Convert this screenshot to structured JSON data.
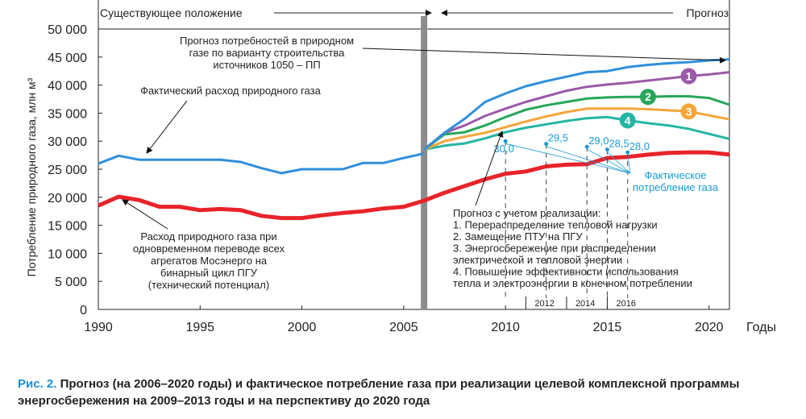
{
  "colors": {
    "historical_gas": "#2f8fdc",
    "potential": "#e8232a",
    "scenario_1": "#9b59a8",
    "scenario_2": "#27a65a",
    "scenario_3": "#f5a53a",
    "scenario_4": "#25b5a3",
    "upper_forecast": "#2f8fdc",
    "actual_points": "#1a9ad6",
    "divider": "#8c8c8c",
    "caption_prefix": "#1a8fd6"
  },
  "header": {
    "left_label": "Существующее положение",
    "right_label": "Прогноз"
  },
  "caption": {
    "prefix": "Рис. 2.",
    "text": "Прогноз (на 2006–2020 годы) и фактическое потребление газа при реализации целевой комплексной программы энергосбережения на 2009–2013 годы и на перспективу до 2020 года"
  },
  "chart_data": {
    "type": "line",
    "xlabel": "Годы",
    "ylabel": "Потребление природного газа, млн м³",
    "xlim": [
      1990,
      2021
    ],
    "ylim": [
      0,
      50000
    ],
    "x_ticks": [
      1990,
      1995,
      2000,
      2005,
      2010,
      2015,
      2020
    ],
    "y_ticks": [
      0,
      5000,
      10000,
      15000,
      20000,
      25000,
      30000,
      35000,
      40000,
      45000,
      50000
    ],
    "y_tick_labels": [
      "0",
      "5 000",
      "10 000",
      "15 000",
      "20 000",
      "25 000",
      "30 000",
      "35 000",
      "40 000",
      "45 000",
      "50 000"
    ],
    "divider_year": 2006,
    "extra_x_labels": [
      "2012",
      "2014",
      "2016"
    ],
    "grid": false,
    "series": [
      {
        "name": "Фактический расход природного газа",
        "key": "historical_gas",
        "x": [
          1990,
          1991,
          1992,
          1993,
          1994,
          1995,
          1996,
          1997,
          1998,
          1999,
          2000,
          2001,
          2002,
          2003,
          2004,
          2005,
          2006
        ],
        "y": [
          26000,
          27400,
          26700,
          26700,
          26700,
          26700,
          26700,
          26300,
          25200,
          24300,
          25000,
          25000,
          25000,
          26100,
          26100,
          27000,
          27800
        ]
      },
      {
        "name": "Расход природного газа при одновременном переводе всех агрегатов Мосэнерго на бинарный цикл ПГУ (технический потенциал)",
        "key": "potential",
        "x": [
          1990,
          1991,
          1992,
          1993,
          1994,
          1995,
          1996,
          1997,
          1998,
          1999,
          2000,
          2001,
          2002,
          2003,
          2004,
          2005,
          2006,
          2007,
          2008,
          2009,
          2010,
          2011,
          2012,
          2013,
          2014,
          2015,
          2016,
          2017,
          2018,
          2019,
          2020,
          2021
        ],
        "y": [
          18500,
          20100,
          19500,
          18300,
          18300,
          17700,
          17900,
          17700,
          16700,
          16300,
          16300,
          16800,
          17200,
          17500,
          18000,
          18300,
          19400,
          20800,
          22000,
          23200,
          24200,
          24600,
          25500,
          25800,
          25900,
          27000,
          27200,
          27600,
          27900,
          28000,
          28000,
          27600
        ]
      },
      {
        "name": "Прогноз потребностей в природном газе по варианту строительства источников 1050 – ПП",
        "key": "upper_forecast",
        "x": [
          2006,
          2007,
          2008,
          2009,
          2010,
          2011,
          2012,
          2013,
          2014,
          2015,
          2016,
          2017,
          2018,
          2019,
          2020,
          2021
        ],
        "y": [
          28500,
          31500,
          34000,
          37000,
          38500,
          39800,
          40700,
          41500,
          42300,
          42500,
          43200,
          43600,
          43900,
          44100,
          44400,
          44600
        ]
      },
      {
        "name": "1",
        "key": "scenario_1",
        "x": [
          2006,
          2007,
          2008,
          2009,
          2010,
          2011,
          2012,
          2013,
          2014,
          2015,
          2016,
          2017,
          2018,
          2019,
          2020,
          2021
        ],
        "y": [
          28500,
          31500,
          32800,
          34500,
          35800,
          37000,
          38000,
          39000,
          39700,
          40100,
          40400,
          40800,
          41200,
          41600,
          41900,
          42300
        ]
      },
      {
        "name": "2",
        "key": "scenario_2",
        "x": [
          2006,
          2007,
          2008,
          2009,
          2010,
          2011,
          2012,
          2013,
          2014,
          2015,
          2016,
          2017,
          2018,
          2019,
          2020,
          2021
        ],
        "y": [
          28500,
          31200,
          31600,
          32800,
          34300,
          35600,
          36400,
          37000,
          37600,
          37800,
          37900,
          37900,
          38000,
          38000,
          37700,
          36500
        ]
      },
      {
        "name": "3",
        "key": "scenario_3",
        "x": [
          2006,
          2007,
          2008,
          2009,
          2010,
          2011,
          2012,
          2013,
          2014,
          2015,
          2016,
          2017,
          2018,
          2019,
          2020,
          2021
        ],
        "y": [
          28500,
          30000,
          30800,
          31500,
          32500,
          33500,
          34400,
          35200,
          35800,
          35800,
          35800,
          35700,
          35500,
          35300,
          34600,
          33900
        ]
      },
      {
        "name": "4",
        "key": "scenario_4",
        "x": [
          2006,
          2007,
          2008,
          2009,
          2010,
          2011,
          2012,
          2013,
          2014,
          2015,
          2016,
          2017,
          2018,
          2019,
          2020,
          2021
        ],
        "y": [
          28500,
          29200,
          29600,
          30500,
          31600,
          32400,
          33000,
          33600,
          34100,
          34300,
          33700,
          33200,
          32800,
          32200,
          31300,
          30400
        ]
      },
      {
        "name": "Фактическое потребление газа",
        "key": "actual_points",
        "type": "scatter",
        "x": [
          2010,
          2012,
          2014,
          2015,
          2016
        ],
        "y": [
          30000,
          29500,
          29000,
          28500,
          28000
        ],
        "labels": [
          "30,0",
          "29,5",
          "29,0",
          "28,5",
          "28,0"
        ]
      }
    ],
    "annotations": {
      "forecast_1050": "Прогноз потребностей в природном газе по варианту строительства источников 1050 – ПП",
      "historical": "Фактический расход природного газа",
      "potential": "Расход природного газа при одновременном переводе всех агрегатов Мосэнерго на бинарный цикл ПГУ (технический потенциал)",
      "actual": "Фактическое потребление газа",
      "scenarios_title": "Прогноз с учетом реализации:",
      "scenarios": [
        "1. Перераспределение тепловой нагрузки",
        "2. Замещение ПТУ на ПГУ",
        "3. Энергосбережение при распределении электрической и тепловой энергии",
        "4. Повышение эффективности использования тепла и электроэнергии в конечном потреблении"
      ]
    }
  }
}
